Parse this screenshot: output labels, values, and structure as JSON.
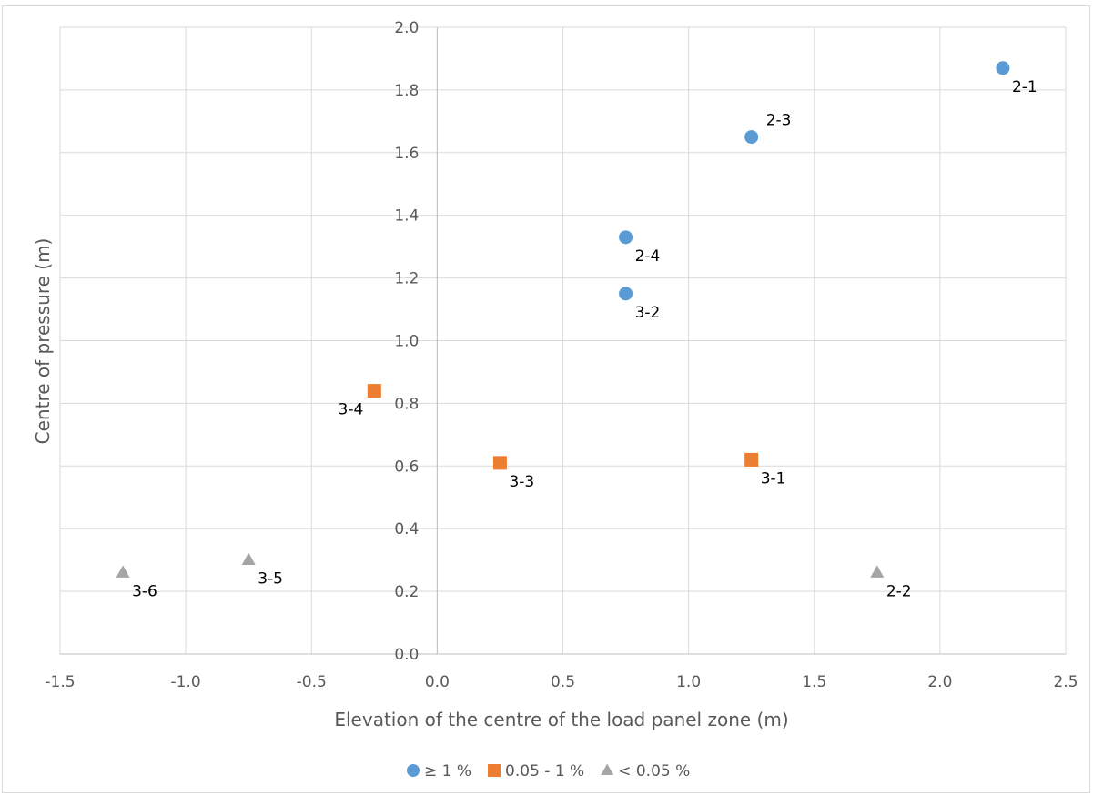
{
  "chart_data": {
    "type": "scatter",
    "title": "",
    "xlabel": "Elevation of the centre of the load panel zone (m)",
    "ylabel": "Centre of pressure (m)",
    "xlim": [
      -1.5,
      2.5
    ],
    "ylim": [
      0.0,
      2.0
    ],
    "x_ticks": [
      "-1.5",
      "-1.0",
      "-0.5",
      "0.0",
      "0.5",
      "1.0",
      "1.5",
      "2.0",
      "2.5"
    ],
    "y_ticks": [
      "0.0",
      "0.2",
      "0.4",
      "0.6",
      "0.8",
      "1.0",
      "1.2",
      "1.4",
      "1.6",
      "1.8",
      "2.0"
    ],
    "grid": true,
    "legend_position": "bottom",
    "series": [
      {
        "name": "≥ 1 %",
        "marker": "circle",
        "color": "#5b9bd5",
        "points": [
          {
            "x": 2.25,
            "y": 1.87,
            "label": "2-1",
            "label_pos": "below-right"
          },
          {
            "x": 1.25,
            "y": 1.65,
            "label": "2-3",
            "label_pos": "above-right"
          },
          {
            "x": 0.75,
            "y": 1.33,
            "label": "2-4",
            "label_pos": "below-right"
          },
          {
            "x": 0.75,
            "y": 1.15,
            "label": "3-2",
            "label_pos": "below-right"
          }
        ]
      },
      {
        "name": "0.05 - 1 %",
        "marker": "square",
        "color": "#ed7d31",
        "points": [
          {
            "x": -0.25,
            "y": 0.84,
            "label": "3-4",
            "label_pos": "below-left"
          },
          {
            "x": 0.25,
            "y": 0.61,
            "label": "3-3",
            "label_pos": "below-right"
          },
          {
            "x": 1.25,
            "y": 0.62,
            "label": "3-1",
            "label_pos": "below-right"
          }
        ]
      },
      {
        "name": "< 0.05 %",
        "marker": "triangle",
        "color": "#a5a5a5",
        "points": [
          {
            "x": -1.25,
            "y": 0.26,
            "label": "3-6",
            "label_pos": "below-right"
          },
          {
            "x": -0.75,
            "y": 0.3,
            "label": "3-5",
            "label_pos": "below-right"
          },
          {
            "x": 1.75,
            "y": 0.26,
            "label": "2-2",
            "label_pos": "below-right"
          }
        ]
      }
    ]
  }
}
